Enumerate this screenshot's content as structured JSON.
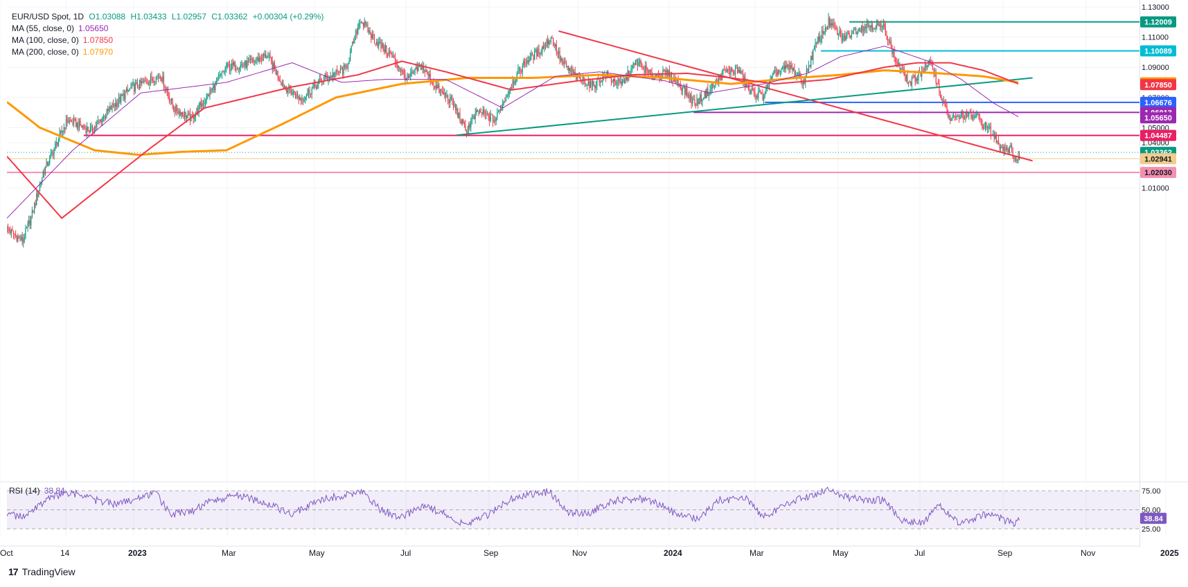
{
  "header": {
    "symbol": "EUR/USD Spot, 1D",
    "open": "O1.03088",
    "high": "H1.03433",
    "low": "L1.02957",
    "close": "C1.03362",
    "change": "+0.00304 (+0.29%)"
  },
  "indicators": [
    {
      "label": "MA (55, close, 0)",
      "value": "1.05650",
      "color": "#9c27b0"
    },
    {
      "label": "MA (100, close, 0)",
      "value": "1.07850",
      "color": "#f23645"
    },
    {
      "label": "MA (200, close, 0)",
      "value": "1.07970",
      "color": "#ff9800"
    }
  ],
  "rsi": {
    "label": "RSI (14)",
    "value": "38.84"
  },
  "brand": {
    "name": "TradingView"
  },
  "chart_data": {
    "type": "candlestick",
    "x_ticks": [
      "Oct",
      "14",
      "2023",
      "Mar",
      "May",
      "Jul",
      "Sep",
      "Nov",
      "2024",
      "Mar",
      "May",
      "Jul",
      "Sep",
      "Nov",
      "2025"
    ],
    "y_ticks": [
      1.13,
      1.11,
      1.09,
      1.07,
      1.05,
      1.04,
      1.01
    ],
    "ylim": [
      0.992,
      1.13
    ],
    "price_path": [
      [
        0,
        0.983
      ],
      [
        14,
        0.975
      ],
      [
        22,
        0.99
      ],
      [
        33,
        1.02
      ],
      [
        55,
        1.055
      ],
      [
        77,
        1.048
      ],
      [
        95,
        1.063
      ],
      [
        113,
        1.076
      ],
      [
        129,
        1.081
      ],
      [
        140,
        1.085
      ],
      [
        152,
        1.063
      ],
      [
        168,
        1.056
      ],
      [
        183,
        1.071
      ],
      [
        200,
        1.09
      ],
      [
        218,
        1.092
      ],
      [
        237,
        1.098
      ],
      [
        252,
        1.078
      ],
      [
        268,
        1.069
      ],
      [
        288,
        1.082
      ],
      [
        309,
        1.089
      ],
      [
        322,
        1.122
      ],
      [
        334,
        1.109
      ],
      [
        350,
        1.098
      ],
      [
        365,
        1.082
      ],
      [
        378,
        1.091
      ],
      [
        392,
        1.076
      ],
      [
        406,
        1.067
      ],
      [
        418,
        1.048
      ],
      [
        430,
        1.061
      ],
      [
        445,
        1.055
      ],
      [
        460,
        1.079
      ],
      [
        473,
        1.094
      ],
      [
        486,
        1.101
      ],
      [
        496,
        1.11
      ],
      [
        506,
        1.093
      ],
      [
        520,
        1.083
      ],
      [
        534,
        1.078
      ],
      [
        546,
        1.085
      ],
      [
        560,
        1.078
      ],
      [
        574,
        1.094
      ],
      [
        588,
        1.084
      ],
      [
        602,
        1.086
      ],
      [
        614,
        1.078
      ],
      [
        627,
        1.066
      ],
      [
        641,
        1.075
      ],
      [
        654,
        1.087
      ],
      [
        667,
        1.088
      ],
      [
        677,
        1.074
      ],
      [
        689,
        1.071
      ],
      [
        701,
        1.087
      ],
      [
        714,
        1.09
      ],
      [
        726,
        1.08
      ],
      [
        737,
        1.104
      ],
      [
        749,
        1.12
      ],
      [
        762,
        1.109
      ],
      [
        776,
        1.116
      ],
      [
        788,
        1.118
      ],
      [
        800,
        1.116
      ],
      [
        810,
        1.095
      ],
      [
        823,
        1.079
      ],
      [
        835,
        1.088
      ],
      [
        843,
        1.093
      ],
      [
        851,
        1.072
      ],
      [
        860,
        1.055
      ],
      [
        872,
        1.058
      ],
      [
        884,
        1.057
      ],
      [
        896,
        1.048
      ],
      [
        907,
        1.037
      ],
      [
        915,
        1.036
      ],
      [
        921,
        1.027
      ],
      [
        924,
        1.0336
      ]
    ],
    "ma55_path": [
      [
        0,
        0.99
      ],
      [
        60,
        1.035
      ],
      [
        122,
        1.073
      ],
      [
        200,
        1.08
      ],
      [
        260,
        1.093
      ],
      [
        305,
        1.08
      ],
      [
        345,
        1.082
      ],
      [
        400,
        1.082
      ],
      [
        452,
        1.063
      ],
      [
        500,
        1.084
      ],
      [
        540,
        1.087
      ],
      [
        600,
        1.081
      ],
      [
        640,
        1.073
      ],
      [
        690,
        1.079
      ],
      [
        730,
        1.086
      ],
      [
        760,
        1.097
      ],
      [
        800,
        1.104
      ],
      [
        840,
        1.094
      ],
      [
        870,
        1.082
      ],
      [
        900,
        1.066
      ],
      [
        924,
        1.0565
      ]
    ],
    "ma100_path": [
      [
        0,
        1.031
      ],
      [
        50,
        0.99
      ],
      [
        130,
        1.036
      ],
      [
        180,
        1.063
      ],
      [
        260,
        1.077
      ],
      [
        320,
        1.085
      ],
      [
        360,
        1.094
      ],
      [
        400,
        1.087
      ],
      [
        460,
        1.075
      ],
      [
        520,
        1.081
      ],
      [
        570,
        1.085
      ],
      [
        620,
        1.086
      ],
      [
        660,
        1.083
      ],
      [
        700,
        1.079
      ],
      [
        750,
        1.082
      ],
      [
        800,
        1.09
      ],
      [
        830,
        1.093
      ],
      [
        860,
        1.093
      ],
      [
        890,
        1.088
      ],
      [
        924,
        1.0785
      ]
    ],
    "ma200_path": [
      [
        0,
        1.067
      ],
      [
        30,
        1.05
      ],
      [
        80,
        1.035
      ],
      [
        120,
        1.032
      ],
      [
        160,
        1.034
      ],
      [
        200,
        1.035
      ],
      [
        250,
        1.052
      ],
      [
        300,
        1.07
      ],
      [
        360,
        1.079
      ],
      [
        420,
        1.083
      ],
      [
        480,
        1.083
      ],
      [
        540,
        1.085
      ],
      [
        600,
        1.083
      ],
      [
        660,
        1.079
      ],
      [
        720,
        1.083
      ],
      [
        760,
        1.085
      ],
      [
        800,
        1.088
      ],
      [
        850,
        1.086
      ],
      [
        890,
        1.084
      ],
      [
        924,
        1.0797
      ]
    ],
    "rsi_path": [
      [
        0,
        45
      ],
      [
        15,
        40
      ],
      [
        30,
        58
      ],
      [
        45,
        68
      ],
      [
        60,
        72
      ],
      [
        80,
        63
      ],
      [
        100,
        57
      ],
      [
        115,
        64
      ],
      [
        135,
        72
      ],
      [
        150,
        44
      ],
      [
        170,
        48
      ],
      [
        185,
        62
      ],
      [
        210,
        69
      ],
      [
        235,
        60
      ],
      [
        260,
        44
      ],
      [
        285,
        63
      ],
      [
        325,
        74
      ],
      [
        340,
        50
      ],
      [
        360,
        40
      ],
      [
        380,
        56
      ],
      [
        400,
        44
      ],
      [
        420,
        29
      ],
      [
        440,
        45
      ],
      [
        460,
        65
      ],
      [
        480,
        71
      ],
      [
        495,
        74
      ],
      [
        510,
        47
      ],
      [
        530,
        45
      ],
      [
        550,
        61
      ],
      [
        575,
        65
      ],
      [
        595,
        57
      ],
      [
        612,
        43
      ],
      [
        630,
        37
      ],
      [
        650,
        63
      ],
      [
        675,
        64
      ],
      [
        690,
        40
      ],
      [
        710,
        59
      ],
      [
        730,
        67
      ],
      [
        750,
        77
      ],
      [
        770,
        65
      ],
      [
        800,
        62
      ],
      [
        815,
        37
      ],
      [
        835,
        33
      ],
      [
        850,
        55
      ],
      [
        870,
        31
      ],
      [
        890,
        43
      ],
      [
        905,
        40
      ],
      [
        918,
        31
      ],
      [
        924,
        38.84
      ]
    ],
    "rsi_levels": [
      75,
      50,
      25
    ],
    "trendlines": [
      {
        "from": [
          503,
          1.114
        ],
        "to": [
          935,
          1.028
        ],
        "color": "#f23645"
      },
      {
        "from": [
          410,
          1.045
        ],
        "to": [
          935,
          1.083
        ],
        "color": "#089981"
      }
    ],
    "levels": [
      {
        "value": 1.12009,
        "label": "1.12009",
        "color": "#089981",
        "start": 768
      },
      {
        "value": 1.10089,
        "label": "1.10089",
        "color": "#00bcd4",
        "start": 742
      },
      {
        "value": 1.06676,
        "label": "1.06676",
        "color": "#2962ff",
        "start": 691
      },
      {
        "value": 1.06013,
        "label": "1.06013",
        "color": "#9c27b0",
        "start": 626
      },
      {
        "value": 1.04487,
        "label": "1.04487",
        "color": "#e91e63",
        "start": 70
      },
      {
        "value": 1.0203,
        "label": "1.02030",
        "color": "#f48fb1",
        "start": 0
      }
    ],
    "price_labels": [
      {
        "value": 1.0797,
        "label": "1.07970",
        "color": "#ff9800"
      },
      {
        "value": 1.0785,
        "label": "1.07850",
        "color": "#f23645"
      },
      {
        "value": 1.0565,
        "label": "1.05650",
        "color": "#9c27b0"
      },
      {
        "value": 1.03362,
        "label": "1.03362",
        "color": "#089981"
      },
      {
        "value": 1.02941,
        "label": "1.02941",
        "color": "#f0cc8d"
      }
    ],
    "rsi_labels": [
      {
        "value": 75,
        "label": "75.00"
      },
      {
        "value": 50,
        "label": "50.00"
      },
      {
        "value": 38.84,
        "label": "38.84"
      },
      {
        "value": 25,
        "label": "25.00"
      }
    ],
    "colors": {
      "up": "#089981",
      "down": "#f23645",
      "rsi": "#7e57c2"
    }
  }
}
